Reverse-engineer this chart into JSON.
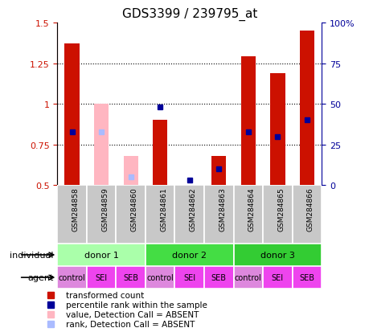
{
  "title": "GDS3399 / 239795_at",
  "samples": [
    "GSM284858",
    "GSM284859",
    "GSM284860",
    "GSM284861",
    "GSM284862",
    "GSM284863",
    "GSM284864",
    "GSM284865",
    "GSM284866"
  ],
  "red_values": [
    1.37,
    null,
    null,
    0.9,
    null,
    0.68,
    1.29,
    1.19,
    1.45
  ],
  "pink_values": [
    null,
    1.0,
    0.68,
    null,
    null,
    null,
    null,
    null,
    null
  ],
  "blue_values": [
    0.83,
    null,
    null,
    0.98,
    0.53,
    0.6,
    0.83,
    0.8,
    0.9
  ],
  "lblue_values": [
    null,
    0.83,
    0.55,
    null,
    null,
    null,
    null,
    null,
    null
  ],
  "ylim_left": [
    0.5,
    1.5
  ],
  "ylim_right": [
    0,
    100
  ],
  "yticks_left": [
    0.5,
    0.75,
    1.0,
    1.25,
    1.5
  ],
  "ytick_labels_left": [
    "0.5",
    "0.75",
    "1",
    "1.25",
    "1.5"
  ],
  "yticks_right": [
    0,
    25,
    50,
    75,
    100
  ],
  "ytick_labels_right": [
    "0",
    "25",
    "50",
    "75",
    "100%"
  ],
  "hlines": [
    0.75,
    1.0,
    1.25
  ],
  "donors": [
    {
      "label": "donor 1",
      "start": 0,
      "end": 3,
      "color": "#aaffaa"
    },
    {
      "label": "donor 2",
      "start": 3,
      "end": 6,
      "color": "#44dd44"
    },
    {
      "label": "donor 3",
      "start": 6,
      "end": 9,
      "color": "#33cc33"
    }
  ],
  "agents": [
    "control",
    "SEI",
    "SEB",
    "control",
    "SEI",
    "SEB",
    "control",
    "SEI",
    "SEB"
  ],
  "agent_colors": [
    "#dd88dd",
    "#ee44ee",
    "#ee44ee",
    "#dd88dd",
    "#ee44ee",
    "#ee44ee",
    "#dd88dd",
    "#ee44ee",
    "#ee44ee"
  ],
  "bar_width": 0.5,
  "red_color": "#CC1100",
  "pink_color": "#FFB6C1",
  "blue_color": "#000099",
  "lblue_color": "#AABBFF",
  "legend_items": [
    {
      "label": "transformed count",
      "color": "#CC1100"
    },
    {
      "label": "percentile rank within the sample",
      "color": "#000099"
    },
    {
      "label": "value, Detection Call = ABSENT",
      "color": "#FFB6C1"
    },
    {
      "label": "rank, Detection Call = ABSENT",
      "color": "#AABBFF"
    }
  ]
}
